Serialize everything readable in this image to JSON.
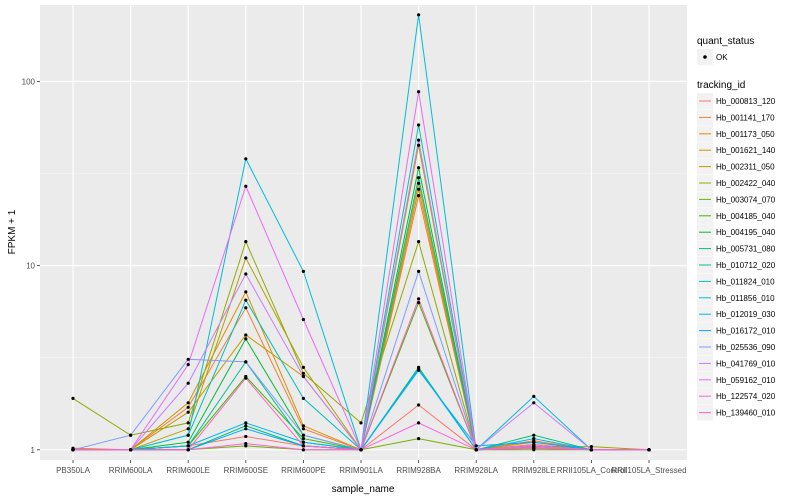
{
  "chart_data": {
    "type": "line",
    "xlabel": "sample_name",
    "ylabel": "FPKM + 1",
    "y_scale": "log10",
    "ylim": [
      0.88,
      260
    ],
    "y_ticks": [
      1,
      10,
      100
    ],
    "y_tick_labels": [
      "1",
      "10",
      "100"
    ],
    "categories": [
      "PB350LA",
      "RRIM600LA",
      "RRIM600LE",
      "RRIM600SE",
      "RRIM600PE",
      "RRIM901LA",
      "RRIM928BA",
      "RRIM928LA",
      "RRIM928LE",
      "RRII105LA_Control",
      "RRII105LA_Stressed"
    ],
    "grid": true,
    "panel_background": "#ebebeb",
    "legend_position": "right",
    "shape_legend": {
      "title": "quant_status",
      "entries": [
        "OK"
      ]
    },
    "color_legend_title": "tracking_id",
    "series": [
      {
        "name": "Hb_000813_120",
        "color": "#F8766D",
        "values": [
          1.0,
          1.0,
          1.05,
          1.18,
          1.05,
          1.0,
          1.75,
          1.0,
          1.07,
          1.0,
          1.0
        ]
      },
      {
        "name": "Hb_001141_170",
        "color": "#EC8239",
        "values": [
          1.02,
          1.0,
          1.7,
          5.9,
          1.3,
          1.0,
          24.0,
          1.0,
          1.12,
          1.0,
          1.0
        ]
      },
      {
        "name": "Hb_001173_050",
        "color": "#DB8E00",
        "values": [
          1.01,
          1.0,
          1.8,
          7.2,
          1.35,
          1.0,
          26.0,
          1.0,
          1.1,
          1.0,
          1.0
        ]
      },
      {
        "name": "Hb_001621_140",
        "color": "#C79800",
        "values": [
          1.0,
          1.0,
          1.6,
          4.2,
          2.5,
          1.0,
          28.0,
          1.0,
          1.05,
          1.0,
          1.0
        ]
      },
      {
        "name": "Hb_002311_050",
        "color": "#AFA100",
        "values": [
          1.01,
          1.0,
          1.3,
          11.0,
          2.8,
          1.0,
          45.0,
          1.0,
          1.05,
          1.0,
          1.0
        ]
      },
      {
        "name": "Hb_002422_040",
        "color": "#94A900",
        "values": [
          1.9,
          1.2,
          1.4,
          13.5,
          2.6,
          1.4,
          13.5,
          1.0,
          1.04,
          1.04,
          1.0
        ]
      },
      {
        "name": "Hb_003074_070",
        "color": "#72B000",
        "values": [
          1.0,
          1.0,
          1.0,
          1.05,
          1.0,
          1.0,
          1.15,
          1.0,
          1.0,
          1.0,
          1.0
        ]
      },
      {
        "name": "Hb_004185_040",
        "color": "#3DB700",
        "values": [
          1.0,
          1.0,
          1.05,
          2.5,
          1.15,
          1.0,
          6.3,
          1.0,
          1.02,
          1.0,
          1.0
        ]
      },
      {
        "name": "Hb_004195_040",
        "color": "#00BA38",
        "values": [
          1.0,
          1.0,
          1.1,
          4.0,
          1.2,
          1.0,
          34.0,
          1.0,
          1.05,
          1.0,
          1.0
        ]
      },
      {
        "name": "Hb_005731_080",
        "color": "#00BE70",
        "values": [
          1.0,
          1.0,
          1.0,
          1.35,
          1.05,
          1.0,
          2.8,
          1.0,
          1.2,
          1.0,
          1.0
        ]
      },
      {
        "name": "Hb_010712_020",
        "color": "#00C097",
        "values": [
          1.0,
          1.0,
          1.05,
          3.0,
          1.1,
          1.0,
          30.0,
          1.0,
          1.05,
          1.0,
          1.0
        ]
      },
      {
        "name": "Hb_011824_010",
        "color": "#00C0B8",
        "values": [
          1.0,
          1.0,
          1.2,
          6.5,
          1.9,
          1.0,
          58.0,
          1.0,
          1.05,
          1.0,
          1.0
        ]
      },
      {
        "name": "Hb_011856_010",
        "color": "#00BCD6",
        "values": [
          1.0,
          1.0,
          1.2,
          38.0,
          9.3,
          1.0,
          230.0,
          1.0,
          1.95,
          1.0,
          1.0
        ]
      },
      {
        "name": "Hb_012019_030",
        "color": "#00B5EE",
        "values": [
          1.0,
          1.0,
          1.05,
          1.4,
          1.1,
          1.0,
          2.75,
          1.0,
          1.15,
          1.0,
          1.0
        ]
      },
      {
        "name": "Hb_016172_010",
        "color": "#00A9FF",
        "values": [
          1.0,
          1.0,
          1.0,
          1.3,
          1.05,
          1.0,
          2.7,
          1.05,
          1.1,
          1.0,
          1.0
        ]
      },
      {
        "name": "Hb_025536_090",
        "color": "#7C9CFF",
        "values": [
          1.0,
          1.2,
          3.1,
          3.0,
          1.2,
          1.0,
          9.3,
          1.0,
          1.05,
          1.0,
          1.0
        ]
      },
      {
        "name": "Hb_041769_010",
        "color": "#C77CFF",
        "values": [
          1.0,
          1.0,
          2.3,
          9.0,
          2.5,
          1.0,
          48.0,
          1.0,
          1.8,
          1.0,
          1.0
        ]
      },
      {
        "name": "Hb_059162_010",
        "color": "#E76BF3",
        "values": [
          1.0,
          1.0,
          2.9,
          27.0,
          5.1,
          1.0,
          88.0,
          1.0,
          1.05,
          1.0,
          1.0
        ]
      },
      {
        "name": "Hb_122574_020",
        "color": "#FA62DB",
        "values": [
          1.0,
          1.0,
          1.0,
          1.08,
          1.0,
          1.0,
          1.4,
          1.0,
          1.02,
          1.0,
          1.0
        ]
      },
      {
        "name": "Hb_139460_010",
        "color": "#FF62BC",
        "values": [
          1.0,
          1.0,
          1.0,
          2.45,
          1.05,
          1.0,
          6.6,
          1.0,
          1.03,
          1.0,
          1.0
        ]
      }
    ]
  }
}
